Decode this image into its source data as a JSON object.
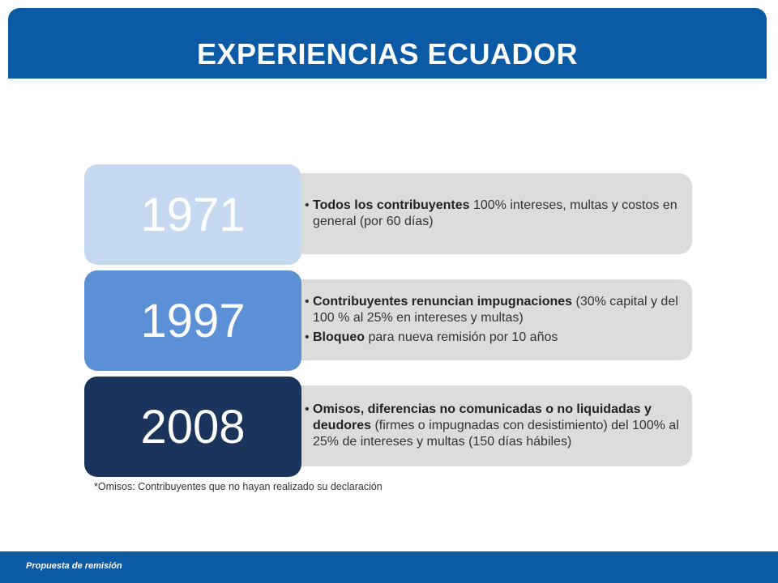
{
  "header": {
    "title": "EXPERIENCIAS ECUADOR"
  },
  "colors": {
    "header": "#0b5aa6",
    "year_1971": "#c5d9f1",
    "year_1997": "#5b8fd6",
    "year_2008": "#1b345c",
    "detail_bg": "#dcdcdc"
  },
  "timeline": [
    {
      "year": "1971",
      "bullets": [
        {
          "bold": "Todos los contribuyentes",
          "text": " 100% intereses, multas y costos en general (por 60 días)"
        }
      ]
    },
    {
      "year": "1997",
      "bullets": [
        {
          "bold": "Contribuyentes  renuncian impugnaciones",
          "text": " (30% capital y del 100 % al 25% en intereses y multas)"
        },
        {
          "bold": "Bloqueo",
          "text": " para nueva remisión por 10 años"
        }
      ]
    },
    {
      "year": "2008",
      "bullets": [
        {
          "bold": "Omisos, diferencias no comunicadas o no liquidadas y deudores",
          "text": " (firmes o impugnadas con desistimiento) del 100% al 25% de intereses y multas (150 días hábiles)"
        }
      ]
    }
  ],
  "footnote": "*Omisos: Contribuyentes que no hayan realizado su declaración",
  "footer": {
    "text": "Propuesta de remisión"
  }
}
